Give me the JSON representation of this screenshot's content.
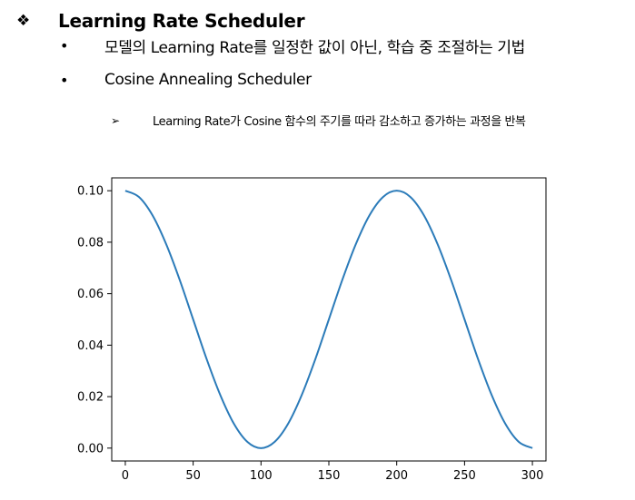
{
  "heading": {
    "icon": "diamond-icon",
    "title": "Learning Rate Scheduler"
  },
  "bullets": [
    {
      "text": "모델의 Learning Rate를 일정한 값이 아닌, 학습 중 조절하는 기법"
    },
    {
      "text": "Cosine Annealing Scheduler"
    }
  ],
  "sub_bullet": {
    "icon": "arrow-icon",
    "text": "Learning Rate가 Cosine 함수의 주기를 따라 감소하고 증가하는 과정을 반복"
  },
  "chart_data": {
    "type": "line",
    "title": "",
    "xlabel": "",
    "ylabel": "",
    "xlim": [
      -10,
      310
    ],
    "ylim": [
      -0.005,
      0.105
    ],
    "x_ticks": [
      0,
      50,
      100,
      150,
      200,
      250,
      300
    ],
    "x_tick_labels": [
      "0",
      "50",
      "100",
      "150",
      "200",
      "250",
      "300"
    ],
    "y_ticks": [
      0.0,
      0.02,
      0.04,
      0.06,
      0.08,
      0.1
    ],
    "y_tick_labels": [
      "0.00",
      "0.02",
      "0.04",
      "0.06",
      "0.08",
      "0.10"
    ],
    "grid": false,
    "line_color": "#2b7bb9",
    "series": [
      {
        "x": [
          0,
          10,
          20,
          30,
          40,
          50,
          60,
          70,
          80,
          90,
          100,
          110,
          120,
          130,
          140,
          150,
          160,
          170,
          180,
          190,
          200,
          210,
          220,
          230,
          240,
          250,
          260,
          270,
          280,
          290,
          300
        ],
        "values": [
          0.1,
          0.0976,
          0.0905,
          0.0794,
          0.0655,
          0.05,
          0.0345,
          0.0206,
          0.0095,
          0.0024,
          0.0,
          0.0024,
          0.0095,
          0.0206,
          0.0345,
          0.05,
          0.0655,
          0.0794,
          0.0905,
          0.0976,
          0.1,
          0.0976,
          0.0905,
          0.0794,
          0.0655,
          0.05,
          0.0345,
          0.0206,
          0.0095,
          0.0024,
          0.0
        ]
      }
    ]
  }
}
